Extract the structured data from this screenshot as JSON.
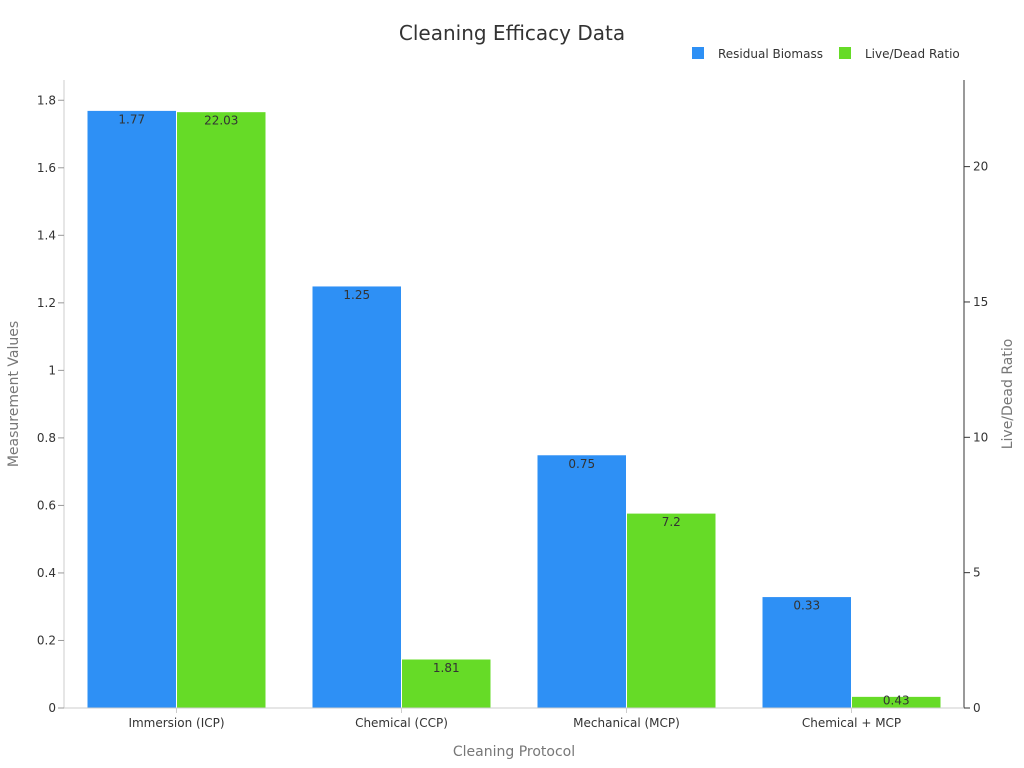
{
  "chart_data": {
    "type": "bar",
    "title": "Cleaning Efficacy Data",
    "xlabel": "Cleaning Protocol",
    "ylabel": "Measurement Values",
    "y2label": "Live/Dead Ratio",
    "categories": [
      "Immersion (ICP)",
      "Chemical (CCP)",
      "Mechanical (MCP)",
      "Chemical + MCP"
    ],
    "ylim": [
      0,
      1.86
    ],
    "yticks": [
      "0",
      "0.2",
      "0.4",
      "0.6",
      "0.8",
      "1",
      "1.2",
      "1.4",
      "1.6",
      "1.8"
    ],
    "y2lim": [
      0,
      23.2
    ],
    "y2ticks": [
      "0",
      "5",
      "10",
      "15",
      "20"
    ],
    "legend_position": "top-right",
    "grid": false,
    "series": [
      {
        "name": "Residual Biomass",
        "axis": "left",
        "color": "#2E90F5",
        "values": [
          1.77,
          1.25,
          0.75,
          0.33
        ],
        "labels": [
          "1.77",
          "1.25",
          "0.75",
          "0.33"
        ]
      },
      {
        "name": "Live/Dead Ratio",
        "axis": "right",
        "color": "#66DB27",
        "values": [
          22.03,
          1.81,
          7.2,
          0.43
        ],
        "labels": [
          "22.03",
          "1.81",
          "7.2",
          "0.43"
        ]
      }
    ]
  }
}
